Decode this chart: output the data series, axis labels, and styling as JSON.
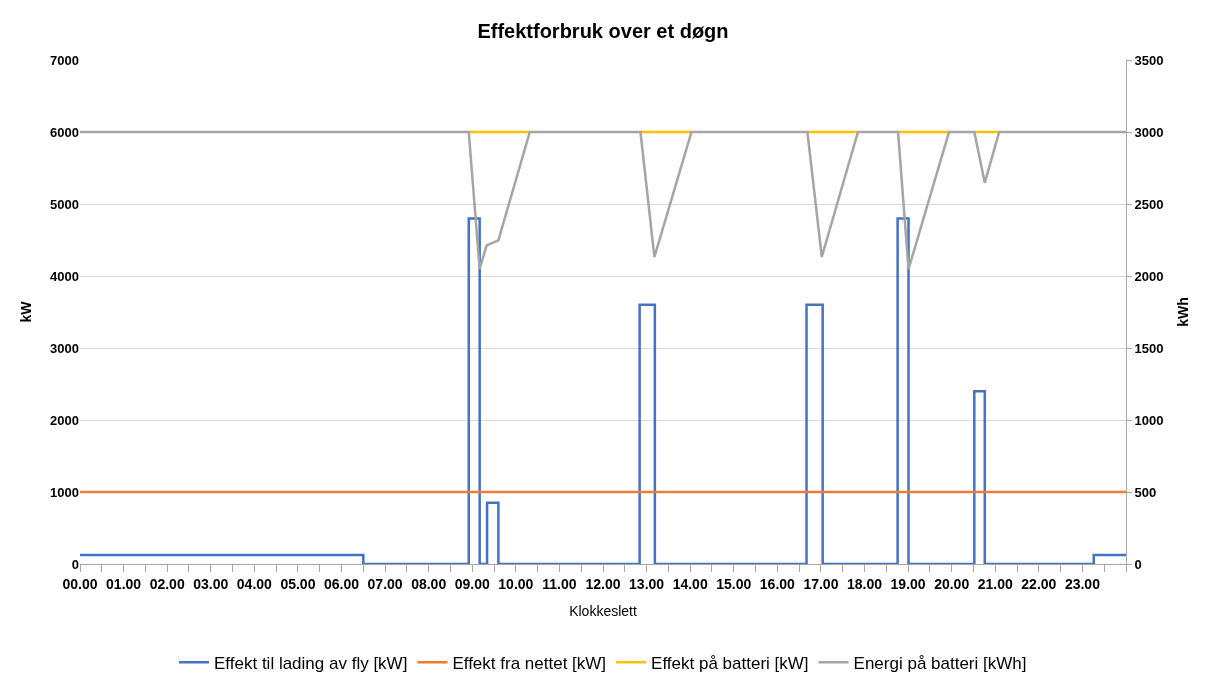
{
  "chart_data": {
    "type": "line",
    "title": "Effektforbruk over et døgn",
    "xlabel": "Klokkeslett",
    "ylabel": "kW",
    "y2label": "kWh",
    "xlim": [
      0,
      24
    ],
    "xticks": [
      {
        "value": 0,
        "label": "00.00"
      },
      {
        "value": 0.5,
        "label": null
      },
      {
        "value": 1,
        "label": "01.00"
      },
      {
        "value": 1.5,
        "label": null
      },
      {
        "value": 2,
        "label": "02.00"
      },
      {
        "value": 2.5,
        "label": null
      },
      {
        "value": 3,
        "label": "03.00"
      },
      {
        "value": 3.5,
        "label": null
      },
      {
        "value": 4,
        "label": "04.00"
      },
      {
        "value": 4.5,
        "label": null
      },
      {
        "value": 5,
        "label": "05.00"
      },
      {
        "value": 5.5,
        "label": null
      },
      {
        "value": 6,
        "label": "06.00"
      },
      {
        "value": 6.5,
        "label": null
      },
      {
        "value": 7,
        "label": "07.00"
      },
      {
        "value": 7.5,
        "label": null
      },
      {
        "value": 8,
        "label": "08.00"
      },
      {
        "value": 8.5,
        "label": null
      },
      {
        "value": 9,
        "label": "09.00"
      },
      {
        "value": 9.5,
        "label": null
      },
      {
        "value": 10,
        "label": "10.00"
      },
      {
        "value": 10.5,
        "label": null
      },
      {
        "value": 11,
        "label": "11.00"
      },
      {
        "value": 11.5,
        "label": null
      },
      {
        "value": 12,
        "label": "12.00"
      },
      {
        "value": 12.5,
        "label": null
      },
      {
        "value": 13,
        "label": "13.00"
      },
      {
        "value": 13.5,
        "label": null
      },
      {
        "value": 14,
        "label": "14.00"
      },
      {
        "value": 14.5,
        "label": null
      },
      {
        "value": 15,
        "label": "15.00"
      },
      {
        "value": 15.5,
        "label": null
      },
      {
        "value": 16,
        "label": "16.00"
      },
      {
        "value": 16.5,
        "label": null
      },
      {
        "value": 17,
        "label": "17.00"
      },
      {
        "value": 17.5,
        "label": null
      },
      {
        "value": 18,
        "label": "18.00"
      },
      {
        "value": 18.5,
        "label": null
      },
      {
        "value": 19,
        "label": "19.00"
      },
      {
        "value": 19.5,
        "label": null
      },
      {
        "value": 20,
        "label": "20.00"
      },
      {
        "value": 20.5,
        "label": null
      },
      {
        "value": 21,
        "label": "21.00"
      },
      {
        "value": 21.5,
        "label": null
      },
      {
        "value": 22,
        "label": "22.00"
      },
      {
        "value": 22.5,
        "label": null
      },
      {
        "value": 23,
        "label": "23.00"
      },
      {
        "value": 23.5,
        "label": null
      },
      {
        "value": 24,
        "label": null
      }
    ],
    "ylim": [
      0,
      7000
    ],
    "yticks": [
      0,
      1000,
      2000,
      3000,
      4000,
      5000,
      6000,
      7000
    ],
    "y2lim": [
      0,
      3500
    ],
    "y2ticks": [
      0,
      500,
      1000,
      1500,
      2000,
      2500,
      3000,
      3500
    ],
    "grid": "y",
    "legend": "bottom",
    "marker": "none",
    "line_style": "solid",
    "series": [
      {
        "name": "Effekt til lading av fly [kW]",
        "color": "#4472c4",
        "x": [
          0,
          6.5,
          6.5,
          8.92,
          8.92,
          9.17,
          9.17,
          9.34,
          9.34,
          9.6,
          9.6,
          12.84,
          12.84,
          13.19,
          13.19,
          16.67,
          16.67,
          17.04,
          17.04,
          18.76,
          18.76,
          19.01,
          19.01,
          20.52,
          20.52,
          20.76,
          20.76,
          23.26,
          23.26,
          24
        ],
        "values": [
          125,
          125,
          0,
          0,
          4800,
          4800,
          0,
          0,
          850,
          850,
          0,
          0,
          3600,
          3600,
          0,
          0,
          3600,
          3600,
          0,
          0,
          4800,
          4800,
          0,
          0,
          2400,
          2400,
          0,
          0,
          125,
          125
        ]
      },
      {
        "name": "Effekt fra nettet [kW]",
        "color": "#ed7d31",
        "x": [
          0,
          24
        ],
        "values": [
          1000,
          1000
        ]
      },
      {
        "name": "Effekt på batteri [kW]",
        "color": "#ffc000",
        "x": [
          8.92,
          10.32,
          11,
          12.86,
          14.03,
          15,
          16.69,
          17.85,
          18.3,
          18.77,
          19.94,
          20.2,
          20.52,
          21.09
        ],
        "values": [
          6000,
          6000,
          null,
          6000,
          6000,
          null,
          6000,
          6000,
          null,
          6000,
          6000,
          null,
          6000,
          6000
        ]
      },
      {
        "name": "Energi på batteri [kWh]",
        "color": "#a5a5a5",
        "axis": "y2",
        "x": [
          0,
          8.92,
          9.17,
          9.33,
          9.6,
          10.32,
          12.86,
          13.18,
          14.03,
          16.69,
          17.02,
          17.85,
          18.77,
          19.01,
          19.94,
          20.52,
          20.76,
          21.09,
          24
        ],
        "values": [
          3000,
          3000,
          2047,
          2213,
          2247,
          3000,
          3000,
          2132,
          3000,
          3000,
          2132,
          3000,
          3000,
          2047,
          3000,
          3000,
          2647,
          3000,
          3000
        ]
      }
    ]
  }
}
